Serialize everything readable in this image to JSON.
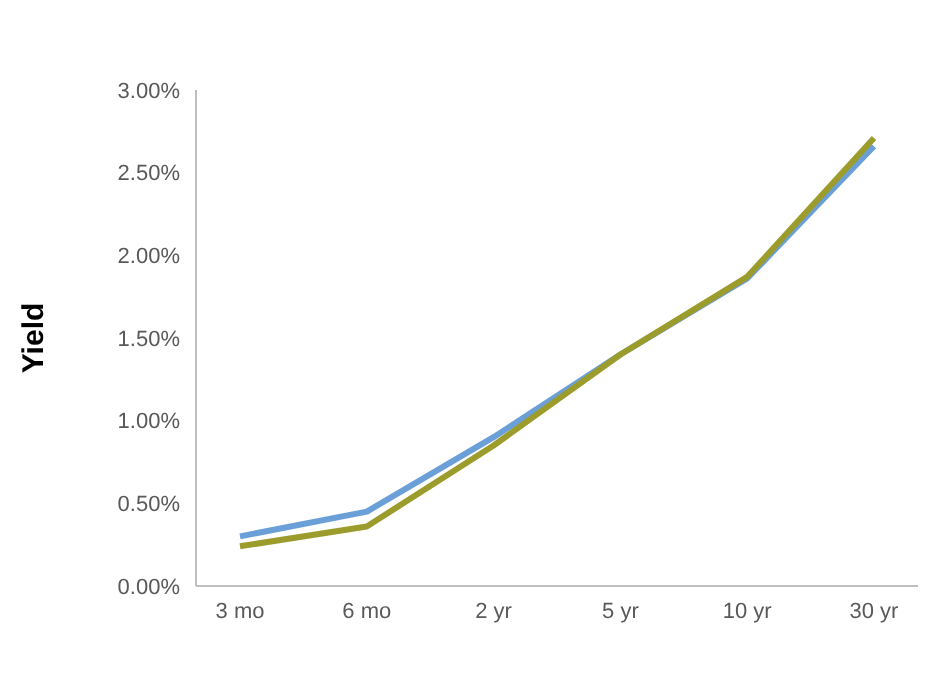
{
  "chart_data": {
    "type": "line",
    "ylabel": "Yield",
    "categories": [
      "3 mo",
      "6 mo",
      "2 yr",
      "5 yr",
      "10 yr",
      "30 yr"
    ],
    "series": [
      {
        "color": "#6a9fd8",
        "values": [
          0.3,
          0.45,
          0.9,
          1.4,
          1.86,
          2.66
        ]
      },
      {
        "color": "#9c9c2c",
        "values": [
          0.24,
          0.36,
          0.85,
          1.4,
          1.87,
          2.71
        ]
      }
    ],
    "ylim": [
      0,
      3
    ],
    "yticks": [
      {
        "value": 0,
        "label": "0.00%"
      },
      {
        "value": 0.5,
        "label": "0.50%"
      },
      {
        "value": 1,
        "label": "1.00%"
      },
      {
        "value": 1.5,
        "label": "1.50%"
      },
      {
        "value": 2,
        "label": "2.00%"
      },
      {
        "value": 2.5,
        "label": "2.50%"
      },
      {
        "value": 3,
        "label": "3.00%"
      }
    ],
    "grid": false,
    "marker": "none",
    "line_style": "solid"
  }
}
